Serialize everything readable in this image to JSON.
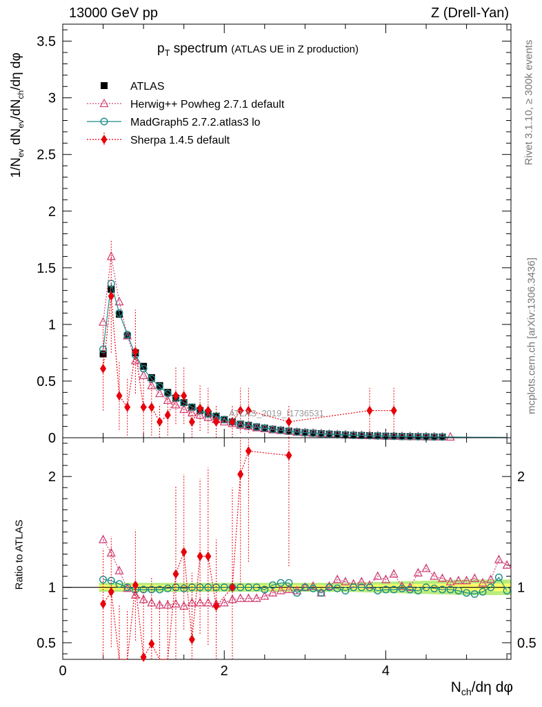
{
  "header": {
    "left": "13000 GeV pp",
    "right": "Z (Drell-Yan)"
  },
  "title": {
    "main_prefix": "p",
    "main_sub": "T",
    "main_suffix": " spectrum",
    "sub": "(ATLAS UE in Z production)"
  },
  "axes": {
    "ylabel_main": "1/N_ev dN_ev/dN_ch/dη dφ",
    "ylabel_main_parts": [
      "1/N",
      "ev",
      " dN",
      "ev",
      "/dN",
      "ch",
      "/dη dφ"
    ],
    "ylabel_ratio": "Ratio to ATLAS",
    "xlabel_parts": [
      "N",
      "ch",
      "/dη dφ"
    ]
  },
  "side": {
    "rivet": "Rivet 3.1.10, ≥ 300k events",
    "mcplots": "mcplots.cern.ch [arXiv:1306.3436]"
  },
  "watermark": "ATLAS_2019_I1736531",
  "colors": {
    "atlas": "#000000",
    "herwig": "#d1467a",
    "madgraph": "#1a8a8a",
    "sherpa": "#e8000b",
    "band_inner": "#ffff66",
    "band_outer": "#b8ec7c"
  },
  "chart_data": [
    {
      "type": "line",
      "title": "p_T spectrum (ATLAS UE in Z production)",
      "xlabel": "N_ch/dη dφ",
      "ylabel": "1/N_ev dN_ev/dN_ch/dη dφ",
      "xlim": [
        0,
        5.55
      ],
      "ylim": [
        0,
        3.65
      ],
      "xticks": [
        0,
        2,
        4
      ],
      "yticks": [
        0.5,
        1,
        1.5,
        2,
        2.5,
        3,
        3.5
      ],
      "x": [
        0.5,
        0.6,
        0.7,
        0.8,
        0.9,
        1.0,
        1.1,
        1.2,
        1.3,
        1.4,
        1.5,
        1.6,
        1.7,
        1.8,
        1.9,
        2.0,
        2.1,
        2.2,
        2.3,
        2.4,
        2.5,
        2.6,
        2.7,
        2.8,
        2.9,
        3.0,
        3.1,
        3.2,
        3.3,
        3.4,
        3.5,
        3.6,
        3.7,
        3.8,
        3.9,
        4.0,
        4.1,
        4.2,
        4.3,
        4.4,
        4.5,
        4.6,
        4.7,
        4.8,
        4.9,
        5.0,
        5.1,
        5.2,
        5.3,
        5.4,
        5.5
      ],
      "series": [
        {
          "name": "ATLAS",
          "marker": "square",
          "values": [
            0.74,
            1.31,
            1.09,
            0.9,
            0.75,
            0.63,
            0.53,
            0.46,
            0.4,
            0.35,
            0.31,
            0.27,
            0.24,
            0.21,
            0.19,
            0.16,
            0.14,
            0.12,
            0.11,
            0.095,
            0.085,
            0.075,
            0.066,
            0.058,
            0.051,
            0.045,
            0.04,
            0.036,
            0.032,
            0.028,
            0.025,
            0.022,
            0.02,
            0.018,
            0.016,
            0.014,
            0.013,
            0.011,
            0.01,
            0.009,
            0.008,
            0.007,
            0.0065,
            0.006,
            0.0055,
            0.005,
            0.0045,
            0.004,
            0.0035,
            0.003,
            0.0028
          ]
        },
        {
          "name": "Herwig++ Powheg 2.7.1 default",
          "marker": "triangle",
          "values": [
            1.02,
            1.6,
            1.2,
            0.9,
            0.68,
            0.55,
            0.46,
            0.39,
            0.33,
            0.29,
            0.25,
            0.22,
            0.2,
            0.18,
            0.16,
            0.14,
            0.125,
            0.11,
            0.1,
            0.088,
            0.08,
            0.07,
            0.064,
            0.057,
            0.049,
            0.045,
            0.04,
            0.036,
            0.032,
            0.029,
            0.026,
            0.023,
            0.021,
            0.019,
            0.017,
            0.015,
            0.014,
            0.012,
            0.011,
            0.01,
            0.009,
            0.008,
            0.007,
            0.0065,
            0.006,
            0.0055,
            0.005,
            0.0045,
            0.004,
            0.0035,
            0.003
          ]
        },
        {
          "name": "MadGraph5 2.7.2.atlas3 lo",
          "marker": "circle",
          "values": [
            0.78,
            1.36,
            1.1,
            0.91,
            0.73,
            0.61,
            0.52,
            0.45,
            0.39,
            0.35,
            0.31,
            0.27,
            0.24,
            0.21,
            0.19,
            0.16,
            0.14,
            0.12,
            0.11,
            0.095,
            0.085,
            0.075,
            0.066,
            0.058,
            0.051,
            0.045,
            0.04,
            0.036,
            0.032,
            0.028,
            0.025,
            0.022,
            0.02,
            0.018,
            0.016,
            0.014,
            0.013,
            0.011,
            0.01,
            0.009,
            0.008,
            0.007,
            0.0065,
            0.006,
            0.0055,
            0.005,
            0.0045,
            0.004,
            0.0035,
            0.003,
            0.0028
          ]
        },
        {
          "name": "Sherpa 1.4.5 default",
          "marker": "diamond",
          "x": [
            0.5,
            0.6,
            0.7,
            0.8,
            0.9,
            1.0,
            1.1,
            1.2,
            1.3,
            1.4,
            1.5,
            1.6,
            1.7,
            1.8,
            1.9,
            2.1,
            2.2,
            2.3,
            2.8,
            3.8,
            4.1
          ],
          "values": [
            0.61,
            1.25,
            0.37,
            0.27,
            0.76,
            0.27,
            0.27,
            0.14,
            0.2,
            0.37,
            0.37,
            0.14,
            0.26,
            0.24,
            0.14,
            0.14,
            0.24,
            0.24,
            0.14,
            0.24,
            0.24
          ],
          "errors": [
            0.37,
            0.5,
            0.3,
            0.25,
            0.37,
            0.25,
            0.25,
            0.14,
            0.18,
            0.25,
            0.25,
            0.14,
            0.2,
            0.2,
            0.14,
            0.14,
            0.2,
            0.2,
            0.14,
            0.2,
            0.2
          ]
        }
      ]
    },
    {
      "type": "line",
      "title": "",
      "xlabel": "N_ch/dη dφ",
      "ylabel": "Ratio to ATLAS",
      "xlim": [
        0,
        5.55
      ],
      "ylim": [
        0.35,
        2.35
      ],
      "xticks": [
        0,
        2,
        4
      ],
      "yticks": [
        0.5,
        1,
        2
      ],
      "x": [
        0.5,
        0.6,
        0.7,
        0.8,
        0.9,
        1.0,
        1.1,
        1.2,
        1.3,
        1.4,
        1.5,
        1.6,
        1.7,
        1.8,
        1.9,
        2.0,
        2.1,
        2.2,
        2.3,
        2.4,
        2.5,
        2.6,
        2.7,
        2.8,
        2.9,
        3.0,
        3.1,
        3.2,
        3.3,
        3.4,
        3.5,
        3.6,
        3.7,
        3.8,
        3.9,
        4.0,
        4.1,
        4.2,
        4.3,
        4.4,
        4.5,
        4.6,
        4.7,
        4.8,
        4.9,
        5.0,
        5.1,
        5.2,
        5.3,
        5.4,
        5.5
      ],
      "band": {
        "inner": 0.02,
        "outer": 0.04,
        "outer_high_x_extra": 0.03
      },
      "series": [
        {
          "name": "Herwig++ Powheg 2.7.1 default",
          "marker": "triangle",
          "values": [
            1.43,
            1.31,
            1.15,
            0.99,
            0.93,
            0.89,
            0.86,
            0.84,
            0.84,
            0.85,
            0.83,
            0.86,
            0.86,
            0.86,
            0.85,
            0.86,
            0.89,
            0.9,
            0.9,
            0.9,
            0.92,
            0.95,
            0.97,
            0.98,
            0.97,
            1.0,
            1.01,
            0.95,
            1.01,
            1.07,
            1.05,
            1.03,
            1.05,
            1.02,
            1.1,
            1.07,
            1.12,
            1.01,
            1.0,
            1.13,
            1.17,
            1.1,
            1.08,
            1.05,
            1.06,
            1.06,
            1.08,
            1.04,
            1.07,
            1.25,
            1.2
          ]
        },
        {
          "name": "MadGraph5 2.7.2.atlas3 lo",
          "marker": "circle",
          "values": [
            1.07,
            1.06,
            1.03,
            1.0,
            0.98,
            0.98,
            0.98,
            0.98,
            0.99,
            1.0,
            0.99,
            1.0,
            1.0,
            1.0,
            1.0,
            1.0,
            1.0,
            1.0,
            1.0,
            1.0,
            0.98,
            1.02,
            1.04,
            1.04,
            0.95,
            1.0,
            0.99,
            0.95,
            1.0,
            0.99,
            0.97,
            1.0,
            1.0,
            1.0,
            0.97,
            0.98,
            0.98,
            0.99,
            0.98,
            0.97,
            1.0,
            0.99,
            0.98,
            0.98,
            0.97,
            0.95,
            0.94,
            0.96,
            1.0,
            1.09,
            0.97
          ]
        },
        {
          "name": "Sherpa 1.4.5 default",
          "marker": "diamond",
          "x": [
            0.5,
            0.6,
            0.7,
            0.8,
            0.9,
            1.0,
            1.1,
            1.2,
            1.3,
            1.4,
            1.5,
            1.6,
            1.7,
            1.8,
            1.9,
            2.1,
            2.2,
            2.3,
            2.8
          ],
          "values": [
            0.85,
            0.96,
            0.34,
            0.3,
            1.02,
            0.37,
            0.49,
            0.28,
            0.3,
            1.12,
            1.32,
            0.53,
            1.28,
            1.28,
            0.83,
            1.0,
            2.02,
            2.23,
            2.19
          ],
          "errors": [
            0.5,
            0.5,
            0.5,
            0.5,
            0.5,
            0.6,
            0.6,
            0.6,
            0.6,
            0.8,
            0.7,
            0.6,
            0.7,
            0.8,
            0.6,
            0.9,
            1.0,
            1.0,
            1.0
          ]
        }
      ]
    }
  ]
}
